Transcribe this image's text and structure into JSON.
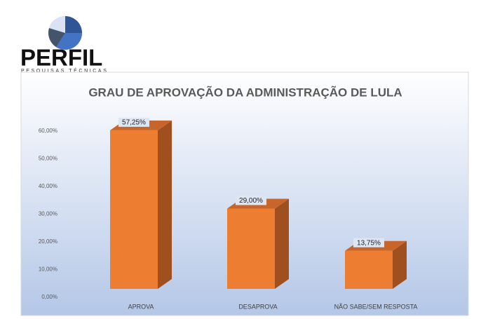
{
  "logo": {
    "name": "PERFIL",
    "tagline": "PESQUISAS TÉCNICAS"
  },
  "chart_data": {
    "type": "bar3d",
    "title": "GRAU DE APROVAÇÃO DA ADMINISTRAÇÃO DE LULA",
    "categories": [
      "APROVA",
      "DESAPROVA",
      "NÃO SABE/SEM RESPOSTA"
    ],
    "values": [
      57.25,
      29,
      13.75
    ],
    "value_labels": [
      "57,25%",
      "29,00%",
      "13,75%"
    ],
    "color": "#ed7d31",
    "ylim": [
      0,
      60
    ],
    "yticks": [
      {
        "value": 0,
        "label": "0,00%"
      },
      {
        "value": 10,
        "label": "10,00%"
      },
      {
        "value": 20,
        "label": "20,00%"
      },
      {
        "value": 30,
        "label": "30,00%"
      },
      {
        "value": 40,
        "label": "40,00%"
      },
      {
        "value": 50,
        "label": "50,00%"
      },
      {
        "value": 60,
        "label": "60,00%"
      }
    ],
    "grid": false
  }
}
